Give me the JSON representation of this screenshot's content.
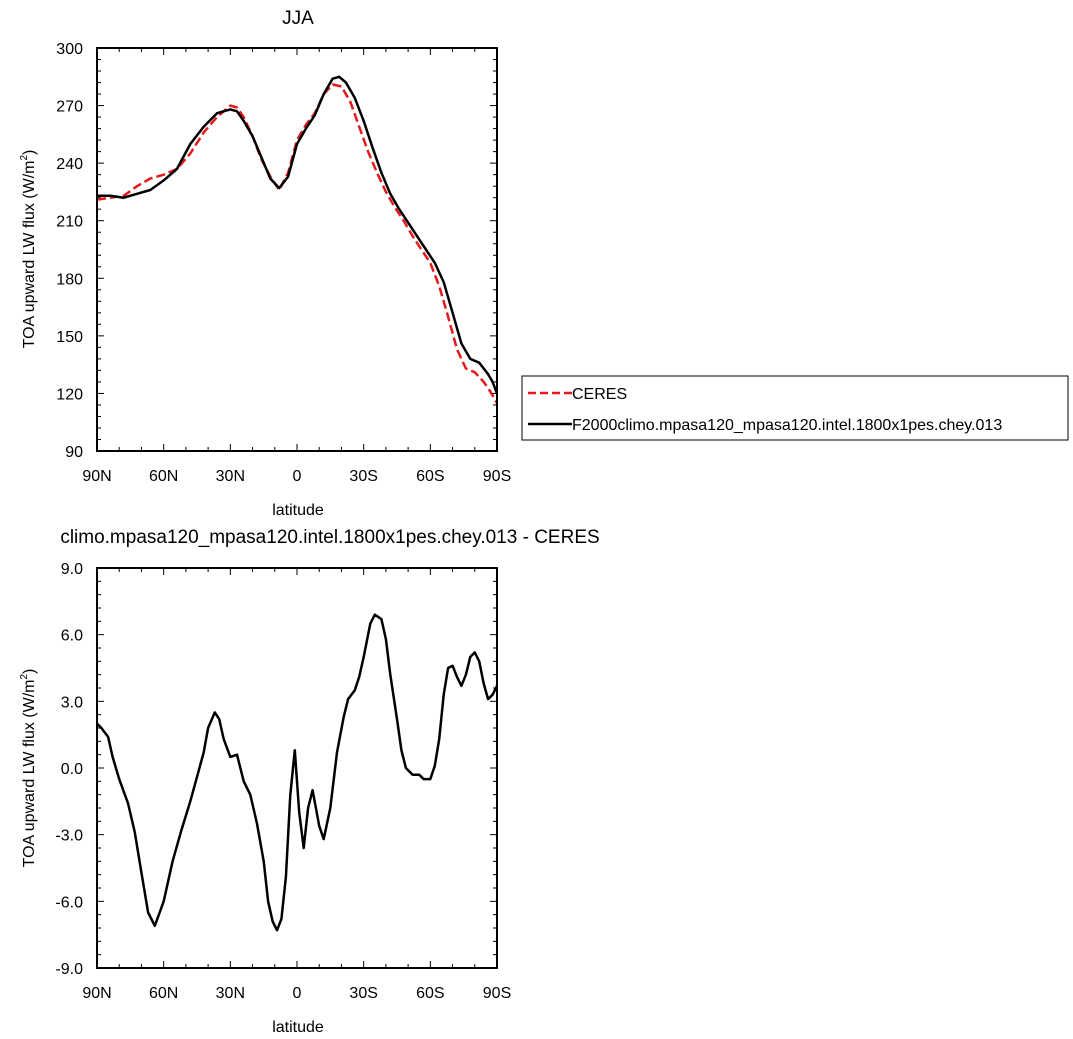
{
  "chart_data": [
    {
      "type": "line",
      "title": "JJA",
      "xlabel": "latitude",
      "ylabel": "TOA upward LW flux (W/m",
      "ylabel_sup": "2",
      "ylabel_close": ")",
      "x_ticks": [
        -90,
        -60,
        -30,
        0,
        30,
        60,
        90
      ],
      "x_tick_labels": [
        "90N",
        "60N",
        "30N",
        "0",
        "30S",
        "60S",
        "90S"
      ],
      "y_ticks": [
        90,
        120,
        150,
        180,
        210,
        240,
        270,
        300
      ],
      "y_tick_labels": [
        "90",
        "120",
        "150",
        "180",
        "210",
        "240",
        "270",
        "300"
      ],
      "xlim": [
        -90,
        90
      ],
      "ylim": [
        90,
        300
      ],
      "legend_position": "right",
      "series": [
        {
          "name": "CERES",
          "color": "#e41a1c",
          "dash": "dashed",
          "x": [
            -90,
            -84,
            -78,
            -72,
            -66,
            -60,
            -54,
            -48,
            -42,
            -36,
            -30,
            -27,
            -24,
            -20,
            -16,
            -12,
            -8,
            -4,
            0,
            4,
            8,
            12,
            16,
            20,
            24,
            28,
            32,
            36,
            40,
            44,
            48,
            52,
            56,
            60,
            64,
            68,
            72,
            76,
            80,
            84,
            87,
            90
          ],
          "y": [
            221,
            222,
            223,
            228,
            232,
            234,
            237,
            245,
            256,
            264,
            270,
            269,
            264,
            254,
            242,
            233,
            226,
            235,
            252,
            260,
            266,
            276,
            281,
            280,
            272,
            259,
            246,
            235,
            225,
            217,
            210,
            202,
            195,
            188,
            176,
            160,
            143,
            133,
            131,
            126,
            121,
            115
          ]
        },
        {
          "name": "F2000climo.mpasa120_mpasa120.intel.1800x1pes.chey.013",
          "color": "#000000",
          "dash": "solid",
          "x": [
            -90,
            -84,
            -78,
            -72,
            -66,
            -60,
            -54,
            -48,
            -42,
            -36,
            -30,
            -27,
            -24,
            -20,
            -16,
            -12,
            -8,
            -4,
            0,
            4,
            8,
            12,
            16,
            19,
            22,
            26,
            30,
            34,
            38,
            42,
            46,
            50,
            54,
            58,
            62,
            66,
            70,
            74,
            78,
            82,
            86,
            88,
            90
          ],
          "y": [
            223,
            223,
            222,
            224,
            226,
            231,
            237,
            250,
            259,
            266,
            268,
            267,
            262,
            254,
            243,
            232,
            227,
            233,
            250,
            258,
            265,
            276,
            284,
            285,
            282,
            274,
            262,
            248,
            235,
            224,
            216,
            209,
            202,
            195,
            188,
            178,
            162,
            146,
            138,
            136,
            130,
            126,
            120
          ]
        }
      ]
    },
    {
      "type": "line",
      "title": "climo.mpasa120_mpasa120.intel.1800x1pes.chey.013 - CERES",
      "xlabel": "latitude",
      "ylabel": "TOA upward LW flux (W/m",
      "ylabel_sup": "2",
      "ylabel_close": ")",
      "x_ticks": [
        -90,
        -60,
        -30,
        0,
        30,
        60,
        90
      ],
      "x_tick_labels": [
        "90N",
        "60N",
        "30N",
        "0",
        "30S",
        "60S",
        "90S"
      ],
      "y_ticks": [
        -9,
        -6,
        -3,
        0,
        3,
        6,
        9
      ],
      "y_tick_labels": [
        "-9.0",
        "-6.0",
        "-3.0",
        "0.0",
        "3.0",
        "6.0",
        "9.0"
      ],
      "xlim": [
        -90,
        90
      ],
      "ylim": [
        -9,
        9
      ],
      "series": [
        {
          "color": "#000000",
          "dash": "solid",
          "x": [
            -90,
            -88,
            -85,
            -83,
            -80,
            -76,
            -73,
            -70,
            -67,
            -64,
            -60,
            -56,
            -52,
            -48,
            -45,
            -42,
            -40,
            -37,
            -35,
            -33,
            -30,
            -27,
            -24,
            -21,
            -18,
            -15,
            -13,
            -11,
            -9,
            -7,
            -5,
            -3,
            -1,
            1,
            3,
            5,
            7,
            10,
            12,
            15,
            18,
            21,
            23,
            26,
            28,
            30,
            33,
            35,
            38,
            40,
            42,
            45,
            47,
            49,
            52,
            55,
            57,
            60,
            62,
            64,
            66,
            68,
            70,
            72,
            74,
            76,
            78,
            80,
            82,
            84,
            86,
            88,
            90
          ],
          "y": [
            2.0,
            1.8,
            1.4,
            0.5,
            -0.5,
            -1.6,
            -2.9,
            -4.7,
            -6.5,
            -7.1,
            -6.0,
            -4.2,
            -2.8,
            -1.5,
            -0.4,
            0.7,
            1.8,
            2.5,
            2.2,
            1.3,
            0.5,
            0.6,
            -0.6,
            -1.2,
            -2.5,
            -4.2,
            -6.0,
            -6.9,
            -7.3,
            -6.8,
            -4.9,
            -1.2,
            0.8,
            -2.0,
            -3.6,
            -1.8,
            -1.0,
            -2.6,
            -3.2,
            -1.8,
            0.7,
            2.3,
            3.1,
            3.5,
            4.1,
            5.0,
            6.5,
            6.9,
            6.7,
            5.8,
            4.2,
            2.2,
            0.8,
            0.0,
            -0.3,
            -0.3,
            -0.5,
            -0.5,
            0.1,
            1.3,
            3.3,
            4.5,
            4.6,
            4.1,
            3.7,
            4.2,
            5.0,
            5.2,
            4.8,
            3.8,
            3.1,
            3.3,
            3.7
          ]
        }
      ]
    }
  ]
}
